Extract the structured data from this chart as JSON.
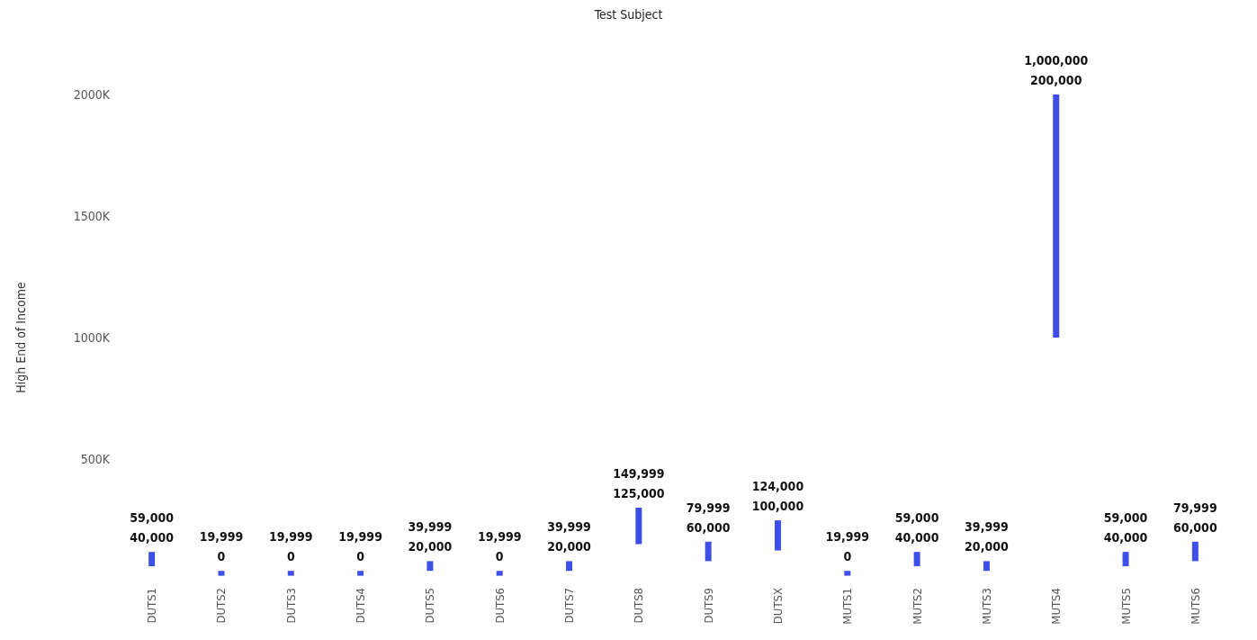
{
  "chart_data": {
    "type": "bar",
    "title": "Test Subject",
    "ylabel": "High End of Income",
    "categories": [
      "DUTS1",
      "DUTS2",
      "DUTS3",
      "DUTS4",
      "DUTS5",
      "DUTS6",
      "DUTS7",
      "DUTS8",
      "DUTS9",
      "DUTSX",
      "MUTS1",
      "MUTS2",
      "MUTS3",
      "MUTS4",
      "MUTS5",
      "MUTS6"
    ],
    "base": [
      59000,
      19999,
      19999,
      19999,
      39999,
      19999,
      39999,
      149999,
      79999,
      124000,
      19999,
      59000,
      39999,
      1000000,
      59000,
      79999
    ],
    "values": [
      59000,
      19999,
      19999,
      19999,
      39999,
      19999,
      39999,
      149999,
      79999,
      124000,
      19999,
      59000,
      39999,
      1000000,
      59000,
      79999
    ],
    "value_labels": [
      "59,000\n40,000",
      "19,999\n0",
      "19,999\n0",
      "19,999\n0",
      "39,999\n20,000",
      "19,999\n0",
      "39,999\n20,000",
      "149,999\n125,000",
      "79,999\n60,000",
      "124,000\n100,000",
      "19,999\n0",
      "59,000\n40,000",
      "39,999\n20,000",
      "1,000,000\n200,000",
      "59,000\n40,000",
      "79,999\n60,000"
    ],
    "color": "#3d4fe6",
    "ylim": [
      0,
      2000000
    ],
    "yticks": [
      {
        "value": 500000,
        "label": "500K"
      },
      {
        "value": 1000000,
        "label": "1000K"
      },
      {
        "value": 1500000,
        "label": "1500K"
      },
      {
        "value": 2000000,
        "label": "2000K"
      }
    ],
    "grid": false
  }
}
